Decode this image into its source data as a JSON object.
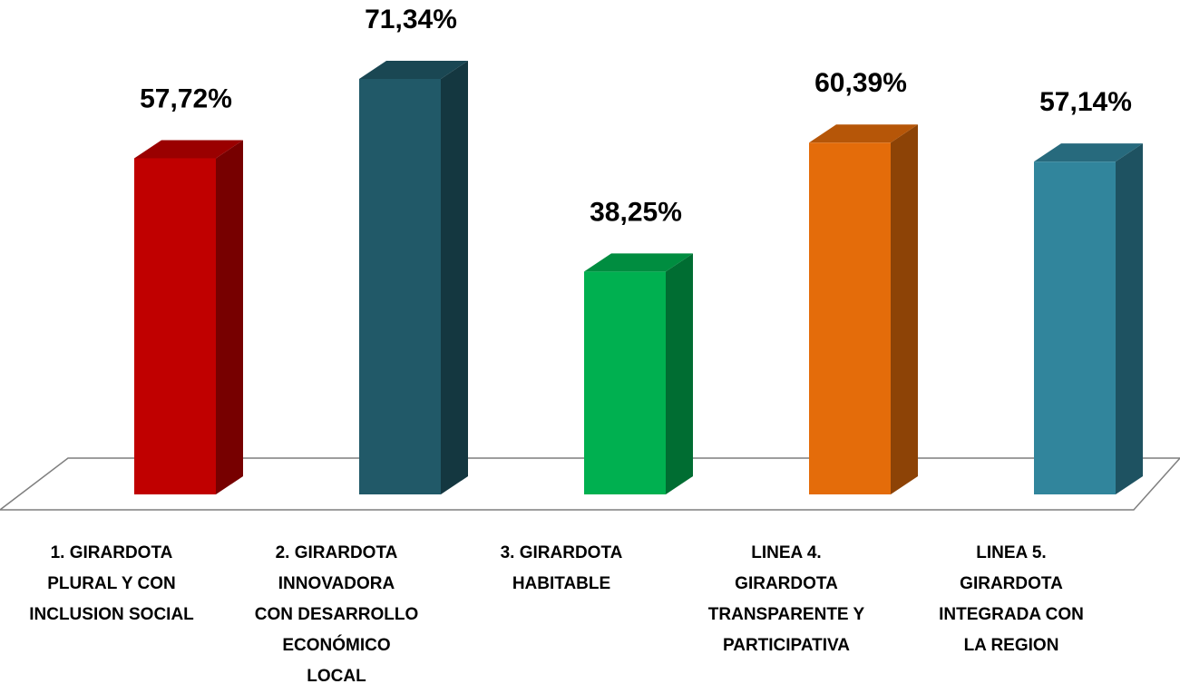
{
  "chart_data": {
    "type": "bar",
    "categories": [
      [
        "1. GIRARDOTA",
        "PLURAL Y CON",
        "INCLUSION SOCIAL"
      ],
      [
        "2. GIRARDOTA",
        "INNOVADORA",
        "CON DESARROLLO",
        "ECONÓMICO",
        "LOCAL"
      ],
      [
        "3. GIRARDOTA",
        "HABITABLE"
      ],
      [
        "LINEA 4.",
        "GIRARDOTA",
        "TRANSPARENTE Y",
        "PARTICIPATIVA"
      ],
      [
        "LINEA 5.",
        "GIRARDOTA",
        "INTEGRADA CON",
        "LA REGION"
      ]
    ],
    "values": [
      57.72,
      71.34,
      38.25,
      60.39,
      57.14
    ],
    "value_labels": [
      "57,72%",
      "71,34%",
      "38,25%",
      "60,39%",
      "57,14%"
    ],
    "colors": [
      "#c00000",
      "#215968",
      "#00b050",
      "#e46c0a",
      "#31859c"
    ]
  }
}
